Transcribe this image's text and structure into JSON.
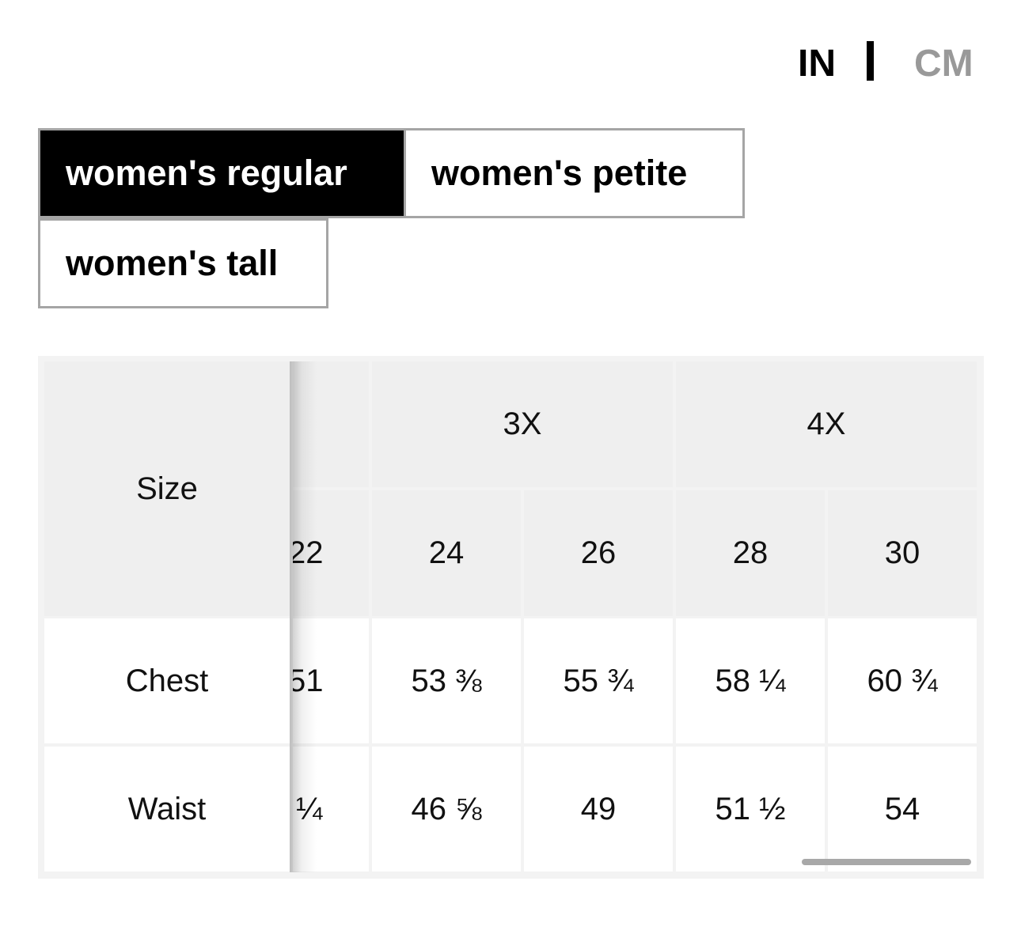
{
  "units": {
    "inches_label": "IN",
    "centimeters_label": "CM",
    "selected": "IN"
  },
  "fit_tabs": [
    {
      "label": "women's regular",
      "active": true
    },
    {
      "label": "women's petite",
      "active": false
    },
    {
      "label": "women's tall",
      "active": false
    }
  ],
  "size_table": {
    "row_header_label": "Size",
    "size_groups": [
      {
        "label": ""
      },
      {
        "label": "3X"
      },
      {
        "label": "4X"
      }
    ],
    "sizes": [
      "22",
      "24",
      "26",
      "28",
      "30"
    ],
    "rows": [
      {
        "label": "Chest",
        "values": [
          "51",
          "53 ⅜",
          "55 ¾",
          "58 ¼",
          "60 ¾"
        ]
      },
      {
        "label": "Waist",
        "values": [
          "¼",
          "46 ⅝",
          "49",
          "51 ½",
          "54"
        ]
      }
    ]
  },
  "colors": {
    "active_tab_bg": "#000000",
    "inactive_unit": "#999999",
    "header_bg": "#efefef",
    "grid_line": "#dcdcdc"
  }
}
